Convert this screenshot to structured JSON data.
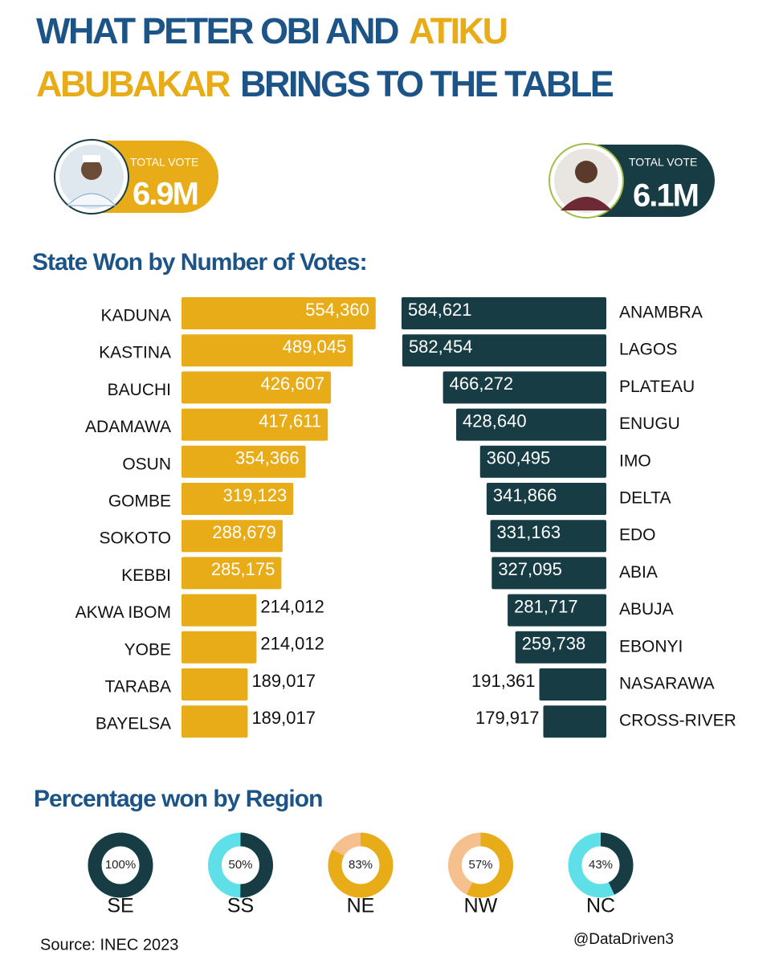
{
  "header": {
    "title": [
      {
        "text": "WHAT PETER OBI AND",
        "color": "#1d5487"
      },
      {
        "text": "ATIKU",
        "color": "#e7ac17"
      },
      {
        "text": "ABUBAKAR",
        "color": "#e7ac17"
      },
      {
        "text": "BRINGS TO THE TABLE",
        "color": "#1d5487"
      }
    ],
    "candidates": [
      {
        "label": "TOTAL VOTE",
        "value": "6.9M",
        "color": "#e7ac17"
      },
      {
        "label": "TOTAL VOTE",
        "value": "6.1M",
        "color": "#173c44"
      }
    ],
    "source": "Source: INEC 2023",
    "handle": "@DataDriven3"
  },
  "chart_data": [
    {
      "type": "bar",
      "direction": "right",
      "title": "State Won by Number of Votes:",
      "color": "#e7ac17",
      "categories": [
        "KADUNA",
        "KASTINA",
        "BAUCHI",
        "ADAMAWA",
        "OSUN",
        "GOMBE",
        "SOKOTO",
        "KEBBI",
        "AKWA IBOM",
        "YOBE",
        "TARABA",
        "BAYELSA"
      ],
      "values": [
        554360,
        489045,
        426607,
        417611,
        354366,
        319123,
        288679,
        285175,
        214012,
        214012,
        189017,
        189017
      ],
      "value_labels": [
        "554,360",
        "489,045",
        "426,607",
        "417,611",
        "354,366",
        "319,123",
        "288,679",
        "285,175",
        "214,012",
        "214,012",
        "189,017",
        "189,017"
      ]
    },
    {
      "type": "bar",
      "direction": "left",
      "color": "#173c44",
      "categories": [
        "ANAMBRA",
        "LAGOS",
        "PLATEAU",
        "ENUGU",
        "IMO",
        "DELTA",
        "EDO",
        "ABIA",
        "ABUJA",
        "EBONYI",
        "NASARAWA",
        "CROSS-RIVER"
      ],
      "values": [
        584621,
        582454,
        466272,
        428640,
        360495,
        341866,
        331163,
        327095,
        281717,
        259738,
        191361,
        179917
      ],
      "value_labels": [
        "584,621",
        "582,454",
        "466,272",
        "428,640",
        "360,495",
        "341,866",
        "331,163",
        "327,095",
        "281,717",
        "259,738",
        "191,361",
        "179,917"
      ]
    },
    {
      "type": "donut",
      "title": "Percentage won by Region",
      "categories": [
        "SE",
        "SS",
        "NE",
        "NW",
        "NC"
      ],
      "values": [
        100,
        50,
        83,
        57,
        43
      ],
      "value_labels": [
        "100%",
        "50%",
        "83%",
        "57%",
        "43%"
      ],
      "colors": [
        "#173c44",
        "#173c44",
        "#e7ac17",
        "#e7ac17",
        "#173c44"
      ],
      "rest_colors": [
        "#5fe0e8",
        "#5fe0e8",
        "#f5c08e",
        "#f5c08e",
        "#5fe0e8"
      ]
    }
  ]
}
